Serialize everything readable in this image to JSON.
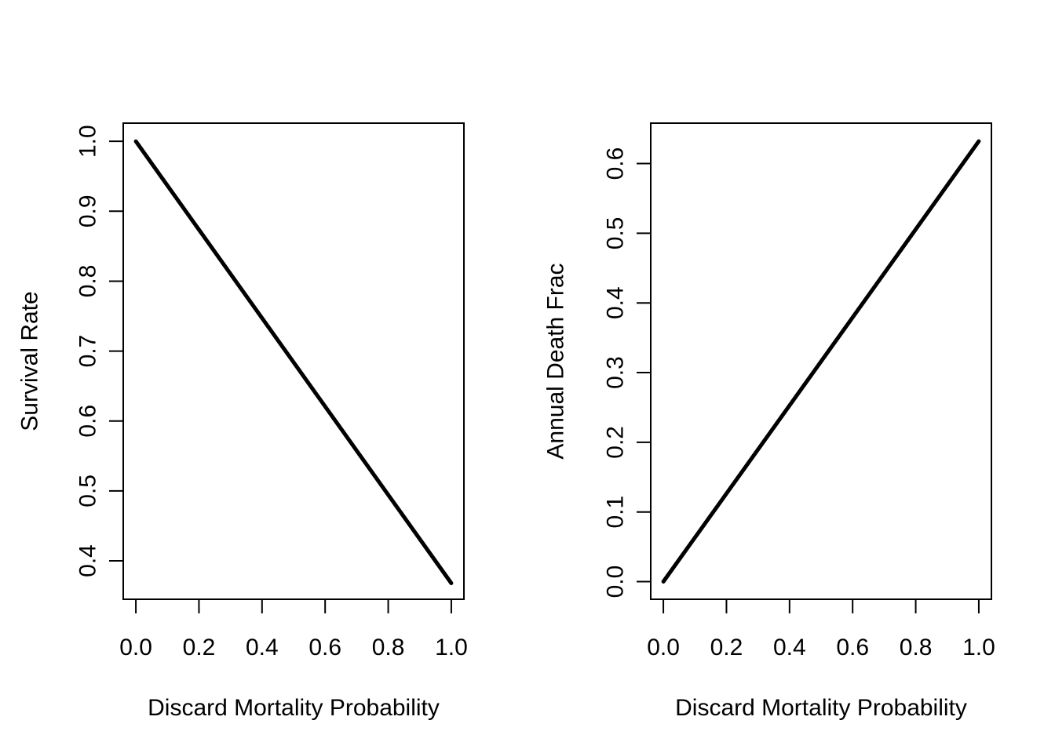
{
  "chart_data": [
    {
      "type": "line",
      "title": "",
      "xlabel": "Discard Mortality Probability",
      "ylabel": "Survival Rate",
      "xlim": [
        -0.04,
        1.04
      ],
      "ylim": [
        0.345,
        1.026
      ],
      "xticks": [
        0.0,
        0.2,
        0.4,
        0.6,
        0.8,
        1.0
      ],
      "xtick_labels": [
        "0.0",
        "0.2",
        "0.4",
        "0.6",
        "0.8",
        "1.0"
      ],
      "yticks": [
        0.4,
        0.5,
        0.6,
        0.7,
        0.8,
        0.9,
        1.0
      ],
      "ytick_labels": [
        "0.4",
        "0.5",
        "0.6",
        "0.7",
        "0.8",
        "0.9",
        "1.0"
      ],
      "grid": false,
      "series": [
        {
          "x": [
            0.0,
            1.0
          ],
          "y": [
            1.0,
            0.368
          ]
        }
      ]
    },
    {
      "type": "line",
      "title": "",
      "xlabel": "Discard Mortality Probability",
      "ylabel": "Annual Death Frac",
      "xlim": [
        -0.04,
        1.04
      ],
      "ylim": [
        -0.0253,
        0.658
      ],
      "xticks": [
        0.0,
        0.2,
        0.4,
        0.6,
        0.8,
        1.0
      ],
      "xtick_labels": [
        "0.0",
        "0.2",
        "0.4",
        "0.6",
        "0.8",
        "1.0"
      ],
      "yticks": [
        0.0,
        0.1,
        0.2,
        0.3,
        0.4,
        0.5,
        0.6
      ],
      "ytick_labels": [
        "0.0",
        "0.1",
        "0.2",
        "0.3",
        "0.4",
        "0.5",
        "0.6"
      ],
      "grid": false,
      "series": [
        {
          "x": [
            0.0,
            1.0
          ],
          "y": [
            0.0,
            0.632
          ]
        }
      ]
    }
  ]
}
